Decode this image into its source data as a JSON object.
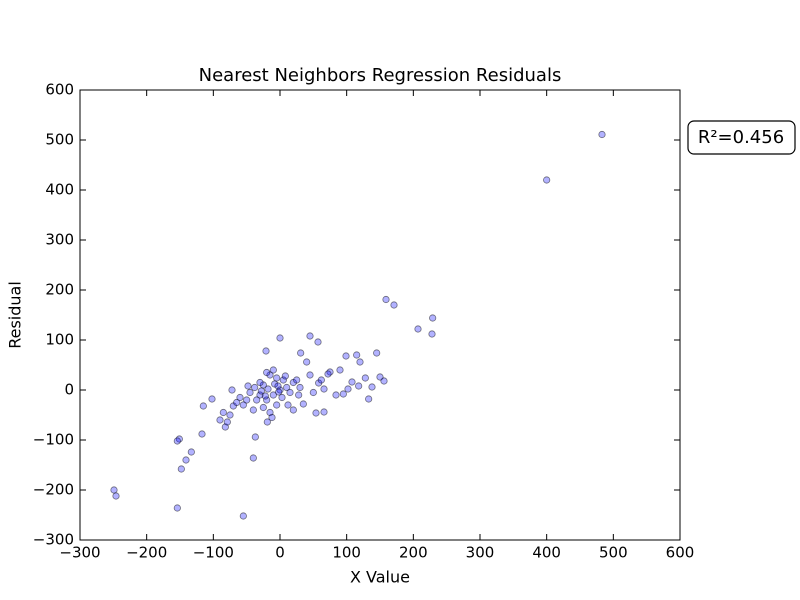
{
  "chart_data": {
    "type": "scatter",
    "title": "Nearest Neighbors Regression Residuals",
    "xlabel": "X Value",
    "ylabel": "Residual",
    "annotation": "R²=0.456",
    "color": "#0000ff",
    "opacity": 0.3,
    "x": [
      483,
      400,
      159,
      171,
      229,
      207,
      228,
      145,
      99,
      115,
      45,
      57,
      0,
      31,
      -21,
      150,
      156,
      133,
      -249,
      -246,
      -154,
      -151,
      -154,
      -148,
      -141,
      -133,
      -117,
      -115,
      -102,
      -55,
      -40,
      -37,
      -82,
      -79,
      -72,
      -75,
      -70,
      -19,
      54,
      66,
      120,
      118,
      108,
      90,
      75,
      84,
      95,
      128,
      138,
      102,
      66,
      72,
      58,
      45,
      40,
      28,
      35,
      20,
      12,
      5,
      -5,
      -10,
      -15,
      -25,
      -30,
      -35,
      -40,
      -45,
      -50,
      -55,
      -60,
      -20,
      -10,
      0,
      10,
      15,
      20,
      25,
      30,
      -5,
      -15,
      -25,
      -30,
      -20,
      -8,
      3,
      8,
      -12,
      -3,
      -18,
      -28,
      -38,
      -48,
      -65,
      50,
      62,
      -85,
      -90,
      -2,
      -22
    ],
    "values": [
      511,
      420,
      181,
      170,
      144,
      122,
      112,
      74,
      68,
      70,
      108,
      96,
      104,
      74,
      78,
      26,
      18,
      -18,
      -200,
      -212,
      -236,
      -98,
      -102,
      -158,
      -140,
      -124,
      -88,
      -32,
      -18,
      -252,
      -136,
      -94,
      -74,
      -64,
      0,
      -50,
      -32,
      -64,
      -46,
      -44,
      56,
      8,
      16,
      40,
      36,
      -10,
      -8,
      24,
      6,
      2,
      2,
      32,
      14,
      30,
      56,
      -10,
      -28,
      -40,
      -30,
      20,
      24,
      40,
      30,
      10,
      -10,
      -20,
      -40,
      -5,
      -20,
      -30,
      -15,
      -20,
      -10,
      0,
      5,
      -5,
      15,
      20,
      5,
      -30,
      -45,
      -35,
      15,
      35,
      12,
      -15,
      28,
      -55,
      8,
      2,
      -2,
      5,
      8,
      -25,
      -5,
      20,
      -45,
      -60,
      -4,
      -12
    ],
    "xlim": [
      -300,
      600
    ],
    "xticks": [
      {
        "value": -300,
        "label": "−300"
      },
      {
        "value": -200,
        "label": "−200"
      },
      {
        "value": -100,
        "label": "−100"
      },
      0,
      100,
      200,
      300,
      400,
      500,
      600
    ],
    "ylim": [
      -300,
      600
    ],
    "yticks": [
      {
        "value": -300,
        "label": "−300"
      },
      {
        "value": -200,
        "label": "−200"
      },
      {
        "value": -100,
        "label": "−100"
      },
      0,
      100,
      200,
      300,
      400,
      500,
      600
    ],
    "grid": false
  }
}
